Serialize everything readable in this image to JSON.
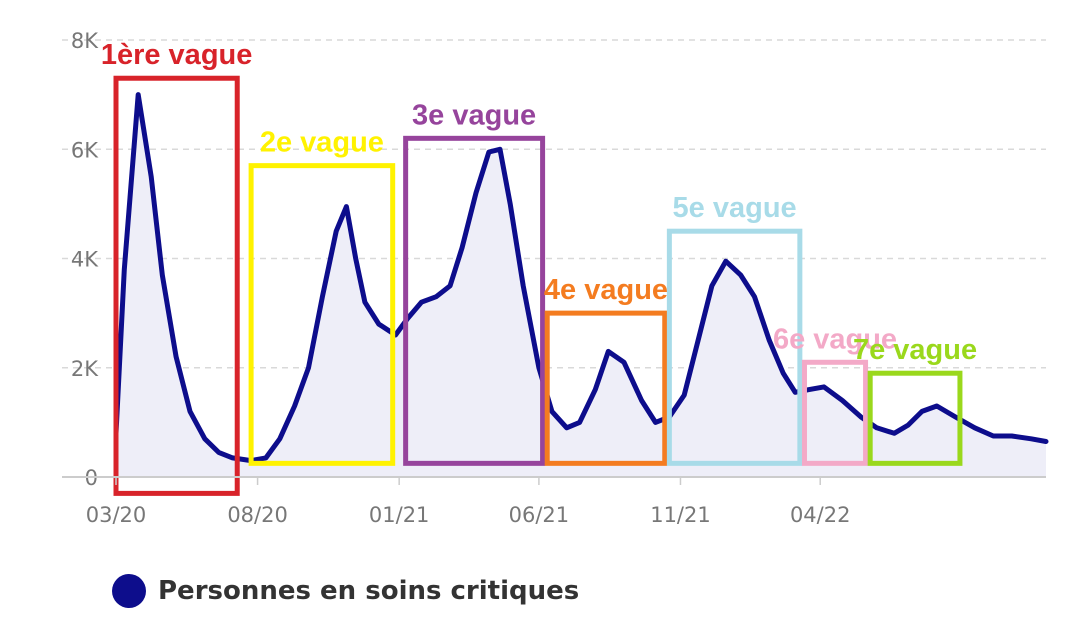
{
  "chart_data": {
    "type": "area",
    "title": "",
    "xlabel": "",
    "ylabel": "",
    "y_ticks": [
      "0",
      "2K",
      "4K",
      "6K",
      "8K"
    ],
    "y_tick_values": [
      0,
      2000,
      4000,
      6000,
      8000
    ],
    "ylim": [
      0,
      8000
    ],
    "x_ticks": [
      "03/20",
      "08/20",
      "01/21",
      "06/21",
      "11/21",
      "04/22"
    ],
    "x_tick_dates": [
      "2020-03-01",
      "2020-08-01",
      "2021-01-01",
      "2021-06-01",
      "2021-11-01",
      "2022-04-01"
    ],
    "xlim": [
      "2020-03-01",
      "2022-12-01"
    ],
    "grid": "horizontal dashed",
    "legend_position": "bottom-left",
    "series": [
      {
        "name": "Personnes en soins critiques",
        "color": "#0d0d8c",
        "x": [
          "2020-03-01",
          "2020-03-10",
          "2020-03-25",
          "2020-04-08",
          "2020-04-20",
          "2020-05-05",
          "2020-05-20",
          "2020-06-05",
          "2020-06-20",
          "2020-07-05",
          "2020-07-25",
          "2020-08-10",
          "2020-08-25",
          "2020-09-10",
          "2020-09-25",
          "2020-10-10",
          "2020-10-25",
          "2020-11-05",
          "2020-11-15",
          "2020-11-25",
          "2020-12-10",
          "2020-12-28",
          "2021-01-10",
          "2021-01-25",
          "2021-02-10",
          "2021-02-25",
          "2021-03-10",
          "2021-03-25",
          "2021-04-08",
          "2021-04-20",
          "2021-05-01",
          "2021-05-15",
          "2021-06-01",
          "2021-06-15",
          "2021-07-01",
          "2021-07-15",
          "2021-08-01",
          "2021-08-15",
          "2021-09-01",
          "2021-09-20",
          "2021-10-05",
          "2021-10-20",
          "2021-11-05",
          "2021-11-20",
          "2021-12-05",
          "2021-12-20",
          "2022-01-05",
          "2022-01-20",
          "2022-02-05",
          "2022-02-20",
          "2022-03-05",
          "2022-03-20",
          "2022-04-05",
          "2022-04-25",
          "2022-05-15",
          "2022-06-01",
          "2022-06-20",
          "2022-07-05",
          "2022-07-20",
          "2022-08-05",
          "2022-08-25",
          "2022-09-15",
          "2022-10-05",
          "2022-10-25",
          "2022-11-15",
          "2022-12-01"
        ],
        "values": [
          800,
          3800,
          7000,
          5500,
          3700,
          2200,
          1200,
          700,
          450,
          350,
          300,
          350,
          700,
          1300,
          2000,
          3300,
          4500,
          4950,
          4000,
          3200,
          2800,
          2600,
          2900,
          3200,
          3300,
          3500,
          4200,
          5200,
          5950,
          6000,
          5000,
          3500,
          2000,
          1200,
          900,
          1000,
          1600,
          2300,
          2100,
          1400,
          1000,
          1100,
          1500,
          2500,
          3500,
          3950,
          3700,
          3300,
          2500,
          1900,
          1550,
          1600,
          1650,
          1400,
          1100,
          900,
          800,
          950,
          1200,
          1300,
          1100,
          900,
          750,
          750,
          700,
          650
        ]
      }
    ],
    "annotations": [
      {
        "label": "1ère vague",
        "color": "#d8232a",
        "x_start": "2020-03-01",
        "x_end": "2020-07-10",
        "y_low": -300,
        "y_high": 7300
      },
      {
        "label": "2e vague",
        "color": "#fff200",
        "x_start": "2020-07-25",
        "x_end": "2020-12-25",
        "y_low": 250,
        "y_high": 5700
      },
      {
        "label": "3e vague",
        "color": "#96449c",
        "x_start": "2021-01-08",
        "x_end": "2021-06-05",
        "y_low": 250,
        "y_high": 6200
      },
      {
        "label": "4e vague",
        "color": "#f47c20",
        "x_start": "2021-06-10",
        "x_end": "2021-10-15",
        "y_low": 250,
        "y_high": 3000
      },
      {
        "label": "5e vague",
        "color": "#a8dbe8",
        "x_start": "2021-10-20",
        "x_end": "2022-03-10",
        "y_low": 250,
        "y_high": 4500
      },
      {
        "label": "6e vague",
        "color": "#f3a9c7",
        "x_start": "2022-03-15",
        "x_end": "2022-05-20",
        "y_low": 250,
        "y_high": 2100
      },
      {
        "label": "7e vague",
        "color": "#9ad81c",
        "x_start": "2022-05-25",
        "x_end": "2022-08-30",
        "y_low": 250,
        "y_high": 1900
      }
    ]
  }
}
